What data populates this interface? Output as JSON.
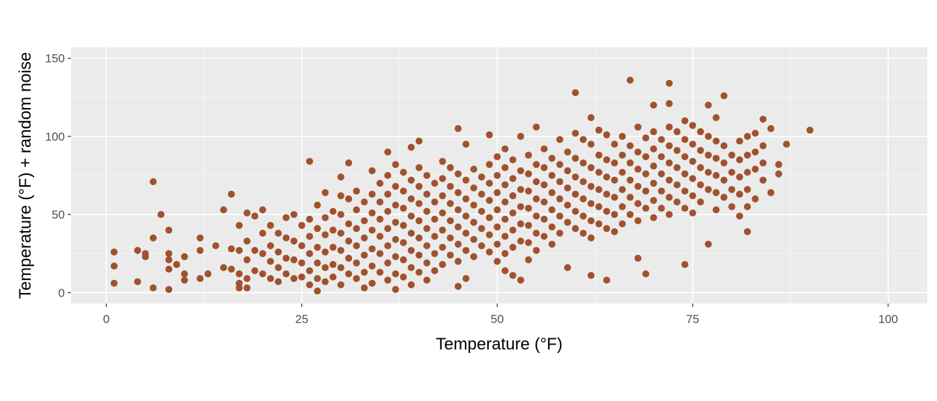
{
  "chart_data": {
    "type": "scatter",
    "title": "",
    "xlabel": "Temperature (°F)",
    "ylabel": "Temperature (°F) + random noise",
    "xlim": [
      -4.5,
      105
    ],
    "ylim": [
      -7,
      157
    ],
    "x_ticks": [
      0,
      25,
      50,
      75,
      100
    ],
    "y_ticks": [
      0,
      50,
      100,
      150
    ],
    "grid": true,
    "legend": "none",
    "colors": {
      "panel_background": "#ebebeb",
      "grid_major": "#ffffff",
      "grid_minor": "#f5f5f5",
      "point": "#a0522d"
    },
    "points": [
      [
        1,
        26
      ],
      [
        1,
        17
      ],
      [
        1,
        6
      ],
      [
        4,
        27
      ],
      [
        4,
        7
      ],
      [
        5,
        25
      ],
      [
        5,
        23
      ],
      [
        6,
        71
      ],
      [
        6,
        35
      ],
      [
        6,
        3
      ],
      [
        7,
        50
      ],
      [
        8,
        40
      ],
      [
        8,
        25
      ],
      [
        8,
        21
      ],
      [
        8,
        15
      ],
      [
        8,
        2
      ],
      [
        9,
        18
      ],
      [
        10,
        23
      ],
      [
        10,
        12
      ],
      [
        10,
        8
      ],
      [
        12,
        35
      ],
      [
        12,
        27
      ],
      [
        12,
        9
      ],
      [
        13,
        12
      ],
      [
        14,
        30
      ],
      [
        15,
        53
      ],
      [
        15,
        16
      ],
      [
        16,
        63
      ],
      [
        16,
        28
      ],
      [
        16,
        15
      ],
      [
        17,
        43
      ],
      [
        17,
        27
      ],
      [
        17,
        12
      ],
      [
        17,
        6
      ],
      [
        17,
        3
      ],
      [
        18,
        51
      ],
      [
        18,
        33
      ],
      [
        18,
        21
      ],
      [
        18,
        9
      ],
      [
        18,
        3
      ],
      [
        19,
        49
      ],
      [
        19,
        27
      ],
      [
        19,
        14
      ],
      [
        20,
        53
      ],
      [
        20,
        38
      ],
      [
        20,
        25
      ],
      [
        20,
        12
      ],
      [
        21,
        43
      ],
      [
        21,
        30
      ],
      [
        21,
        20
      ],
      [
        21,
        9
      ],
      [
        22,
        38
      ],
      [
        22,
        26
      ],
      [
        22,
        16
      ],
      [
        22,
        7
      ],
      [
        23,
        48
      ],
      [
        23,
        35
      ],
      [
        23,
        22
      ],
      [
        23,
        12
      ],
      [
        24,
        50
      ],
      [
        24,
        33
      ],
      [
        24,
        21
      ],
      [
        24,
        9
      ],
      [
        25,
        43
      ],
      [
        25,
        30
      ],
      [
        25,
        19
      ],
      [
        25,
        10
      ],
      [
        26,
        84
      ],
      [
        26,
        47
      ],
      [
        26,
        36
      ],
      [
        26,
        25
      ],
      [
        26,
        14
      ],
      [
        26,
        5
      ],
      [
        27,
        56
      ],
      [
        27,
        41
      ],
      [
        27,
        29
      ],
      [
        27,
        19
      ],
      [
        27,
        9
      ],
      [
        27,
        1
      ],
      [
        28,
        64
      ],
      [
        28,
        48
      ],
      [
        28,
        37
      ],
      [
        28,
        26
      ],
      [
        28,
        16
      ],
      [
        28,
        7
      ],
      [
        29,
        52
      ],
      [
        29,
        40
      ],
      [
        29,
        29
      ],
      [
        29,
        18
      ],
      [
        29,
        10
      ],
      [
        30,
        74
      ],
      [
        30,
        62
      ],
      [
        30,
        50
      ],
      [
        30,
        38
      ],
      [
        30,
        27
      ],
      [
        30,
        16
      ],
      [
        30,
        5
      ],
      [
        31,
        83
      ],
      [
        31,
        60
      ],
      [
        31,
        44
      ],
      [
        31,
        33
      ],
      [
        31,
        22
      ],
      [
        31,
        12
      ],
      [
        32,
        65
      ],
      [
        32,
        53
      ],
      [
        32,
        41
      ],
      [
        32,
        30
      ],
      [
        32,
        19
      ],
      [
        32,
        9
      ],
      [
        33,
        58
      ],
      [
        33,
        46
      ],
      [
        33,
        35
      ],
      [
        33,
        24
      ],
      [
        33,
        13
      ],
      [
        33,
        3
      ],
      [
        34,
        78
      ],
      [
        34,
        63
      ],
      [
        34,
        51
      ],
      [
        34,
        40
      ],
      [
        34,
        28
      ],
      [
        34,
        17
      ],
      [
        34,
        6
      ],
      [
        35,
        70
      ],
      [
        35,
        58
      ],
      [
        35,
        47
      ],
      [
        35,
        36
      ],
      [
        35,
        25
      ],
      [
        35,
        13
      ],
      [
        36,
        90
      ],
      [
        36,
        75
      ],
      [
        36,
        63
      ],
      [
        36,
        52
      ],
      [
        36,
        41
      ],
      [
        36,
        30
      ],
      [
        36,
        19
      ],
      [
        36,
        8
      ],
      [
        37,
        82
      ],
      [
        37,
        68
      ],
      [
        37,
        56
      ],
      [
        37,
        45
      ],
      [
        37,
        34
      ],
      [
        37,
        23
      ],
      [
        37,
        12
      ],
      [
        37,
        2
      ],
      [
        38,
        77
      ],
      [
        38,
        65
      ],
      [
        38,
        54
      ],
      [
        38,
        43
      ],
      [
        38,
        32
      ],
      [
        38,
        21
      ],
      [
        38,
        10
      ],
      [
        39,
        93
      ],
      [
        39,
        72
      ],
      [
        39,
        60
      ],
      [
        39,
        49
      ],
      [
        39,
        38
      ],
      [
        39,
        27
      ],
      [
        39,
        16
      ],
      [
        39,
        5
      ],
      [
        40,
        97
      ],
      [
        40,
        80
      ],
      [
        40,
        68
      ],
      [
        40,
        57
      ],
      [
        40,
        46
      ],
      [
        40,
        35
      ],
      [
        40,
        24
      ],
      [
        40,
        13
      ],
      [
        41,
        75
      ],
      [
        41,
        63
      ],
      [
        41,
        52
      ],
      [
        41,
        41
      ],
      [
        41,
        30
      ],
      [
        41,
        19
      ],
      [
        41,
        8
      ],
      [
        42,
        70
      ],
      [
        42,
        58
      ],
      [
        42,
        47
      ],
      [
        42,
        36
      ],
      [
        42,
        25
      ],
      [
        42,
        14
      ],
      [
        43,
        84
      ],
      [
        43,
        73
      ],
      [
        43,
        62
      ],
      [
        43,
        51
      ],
      [
        43,
        40
      ],
      [
        43,
        29
      ],
      [
        43,
        18
      ],
      [
        44,
        80
      ],
      [
        44,
        68
      ],
      [
        44,
        57
      ],
      [
        44,
        46
      ],
      [
        44,
        35
      ],
      [
        44,
        24
      ],
      [
        45,
        105
      ],
      [
        45,
        76
      ],
      [
        45,
        64
      ],
      [
        45,
        53
      ],
      [
        45,
        42
      ],
      [
        45,
        31
      ],
      [
        45,
        20
      ],
      [
        45,
        4
      ],
      [
        46,
        95
      ],
      [
        46,
        72
      ],
      [
        46,
        60
      ],
      [
        46,
        49
      ],
      [
        46,
        38
      ],
      [
        46,
        27
      ],
      [
        46,
        9
      ],
      [
        47,
        79
      ],
      [
        47,
        67
      ],
      [
        47,
        56
      ],
      [
        47,
        45
      ],
      [
        47,
        34
      ],
      [
        47,
        23
      ],
      [
        48,
        74
      ],
      [
        48,
        63
      ],
      [
        48,
        52
      ],
      [
        48,
        41
      ],
      [
        48,
        30
      ],
      [
        49,
        101
      ],
      [
        49,
        82
      ],
      [
        49,
        70
      ],
      [
        49,
        59
      ],
      [
        49,
        48
      ],
      [
        49,
        37
      ],
      [
        49,
        26
      ],
      [
        50,
        87
      ],
      [
        50,
        75
      ],
      [
        50,
        64
      ],
      [
        50,
        53
      ],
      [
        50,
        42
      ],
      [
        50,
        31
      ],
      [
        50,
        20
      ],
      [
        51,
        92
      ],
      [
        51,
        80
      ],
      [
        51,
        69
      ],
      [
        51,
        58
      ],
      [
        51,
        47
      ],
      [
        51,
        36
      ],
      [
        51,
        25
      ],
      [
        51,
        14
      ],
      [
        52,
        85
      ],
      [
        52,
        73
      ],
      [
        52,
        62
      ],
      [
        52,
        51
      ],
      [
        52,
        40
      ],
      [
        52,
        29
      ],
      [
        52,
        11
      ],
      [
        53,
        100
      ],
      [
        53,
        78
      ],
      [
        53,
        66
      ],
      [
        53,
        55
      ],
      [
        53,
        44
      ],
      [
        53,
        33
      ],
      [
        53,
        8
      ],
      [
        54,
        88
      ],
      [
        54,
        76
      ],
      [
        54,
        65
      ],
      [
        54,
        54
      ],
      [
        54,
        43
      ],
      [
        54,
        32
      ],
      [
        54,
        21
      ],
      [
        55,
        106
      ],
      [
        55,
        82
      ],
      [
        55,
        71
      ],
      [
        55,
        60
      ],
      [
        55,
        49
      ],
      [
        55,
        38
      ],
      [
        55,
        27
      ],
      [
        56,
        92
      ],
      [
        56,
        80
      ],
      [
        56,
        69
      ],
      [
        56,
        58
      ],
      [
        56,
        47
      ],
      [
        56,
        36
      ],
      [
        57,
        86
      ],
      [
        57,
        75
      ],
      [
        57,
        64
      ],
      [
        57,
        53
      ],
      [
        57,
        42
      ],
      [
        57,
        31
      ],
      [
        58,
        98
      ],
      [
        58,
        82
      ],
      [
        58,
        71
      ],
      [
        58,
        60
      ],
      [
        58,
        49
      ],
      [
        58,
        38
      ],
      [
        59,
        90
      ],
      [
        59,
        78
      ],
      [
        59,
        67
      ],
      [
        59,
        56
      ],
      [
        59,
        45
      ],
      [
        59,
        16
      ],
      [
        60,
        128
      ],
      [
        60,
        102
      ],
      [
        60,
        86
      ],
      [
        60,
        74
      ],
      [
        60,
        63
      ],
      [
        60,
        52
      ],
      [
        60,
        41
      ],
      [
        61,
        98
      ],
      [
        61,
        83
      ],
      [
        61,
        71
      ],
      [
        61,
        60
      ],
      [
        61,
        49
      ],
      [
        61,
        38
      ],
      [
        62,
        112
      ],
      [
        62,
        95
      ],
      [
        62,
        80
      ],
      [
        62,
        68
      ],
      [
        62,
        57
      ],
      [
        62,
        46
      ],
      [
        62,
        35
      ],
      [
        62,
        11
      ],
      [
        63,
        104
      ],
      [
        63,
        88
      ],
      [
        63,
        77
      ],
      [
        63,
        66
      ],
      [
        63,
        55
      ],
      [
        63,
        44
      ],
      [
        64,
        101
      ],
      [
        64,
        85
      ],
      [
        64,
        74
      ],
      [
        64,
        63
      ],
      [
        64,
        52
      ],
      [
        64,
        41
      ],
      [
        64,
        8
      ],
      [
        65,
        95
      ],
      [
        65,
        83
      ],
      [
        65,
        72
      ],
      [
        65,
        61
      ],
      [
        65,
        50
      ],
      [
        65,
        39
      ],
      [
        66,
        100
      ],
      [
        66,
        88
      ],
      [
        66,
        77
      ],
      [
        66,
        66
      ],
      [
        66,
        55
      ],
      [
        66,
        44
      ],
      [
        67,
        136
      ],
      [
        67,
        94
      ],
      [
        67,
        83
      ],
      [
        67,
        72
      ],
      [
        67,
        61
      ],
      [
        67,
        50
      ],
      [
        68,
        106
      ],
      [
        68,
        90
      ],
      [
        68,
        79
      ],
      [
        68,
        68
      ],
      [
        68,
        57
      ],
      [
        68,
        46
      ],
      [
        68,
        22
      ],
      [
        69,
        99
      ],
      [
        69,
        87
      ],
      [
        69,
        76
      ],
      [
        69,
        65
      ],
      [
        69,
        54
      ],
      [
        69,
        12
      ],
      [
        70,
        120
      ],
      [
        70,
        103
      ],
      [
        70,
        92
      ],
      [
        70,
        81
      ],
      [
        70,
        70
      ],
      [
        70,
        59
      ],
      [
        70,
        48
      ],
      [
        71,
        98
      ],
      [
        71,
        87
      ],
      [
        71,
        76
      ],
      [
        71,
        65
      ],
      [
        71,
        54
      ],
      [
        72,
        134
      ],
      [
        72,
        121
      ],
      [
        72,
        106
      ],
      [
        72,
        94
      ],
      [
        72,
        83
      ],
      [
        72,
        72
      ],
      [
        72,
        61
      ],
      [
        72,
        50
      ],
      [
        73,
        103
      ],
      [
        73,
        91
      ],
      [
        73,
        80
      ],
      [
        73,
        69
      ],
      [
        73,
        58
      ],
      [
        74,
        110
      ],
      [
        74,
        98
      ],
      [
        74,
        87
      ],
      [
        74,
        76
      ],
      [
        74,
        65
      ],
      [
        74,
        54
      ],
      [
        74,
        18
      ],
      [
        75,
        107
      ],
      [
        75,
        95
      ],
      [
        75,
        84
      ],
      [
        75,
        73
      ],
      [
        75,
        62
      ],
      [
        75,
        51
      ],
      [
        76,
        103
      ],
      [
        76,
        91
      ],
      [
        76,
        80
      ],
      [
        76,
        69
      ],
      [
        76,
        58
      ],
      [
        77,
        120
      ],
      [
        77,
        100
      ],
      [
        77,
        88
      ],
      [
        77,
        77
      ],
      [
        77,
        66
      ],
      [
        77,
        31
      ],
      [
        78,
        112
      ],
      [
        78,
        97
      ],
      [
        78,
        86
      ],
      [
        78,
        75
      ],
      [
        78,
        64
      ],
      [
        78,
        53
      ],
      [
        79,
        126
      ],
      [
        79,
        94
      ],
      [
        79,
        83
      ],
      [
        79,
        72
      ],
      [
        79,
        61
      ],
      [
        80,
        88
      ],
      [
        80,
        77
      ],
      [
        80,
        66
      ],
      [
        80,
        55
      ],
      [
        81,
        97
      ],
      [
        81,
        85
      ],
      [
        81,
        74
      ],
      [
        81,
        63
      ],
      [
        81,
        49
      ],
      [
        82,
        100
      ],
      [
        82,
        88
      ],
      [
        82,
        77
      ],
      [
        82,
        66
      ],
      [
        82,
        55
      ],
      [
        82,
        39
      ],
      [
        83,
        102
      ],
      [
        83,
        90
      ],
      [
        83,
        79
      ],
      [
        83,
        60
      ],
      [
        84,
        111
      ],
      [
        84,
        94
      ],
      [
        84,
        83
      ],
      [
        84,
        72
      ],
      [
        85,
        105
      ],
      [
        85,
        64
      ],
      [
        86,
        82
      ],
      [
        86,
        76
      ],
      [
        87,
        95
      ],
      [
        90,
        104
      ]
    ]
  }
}
